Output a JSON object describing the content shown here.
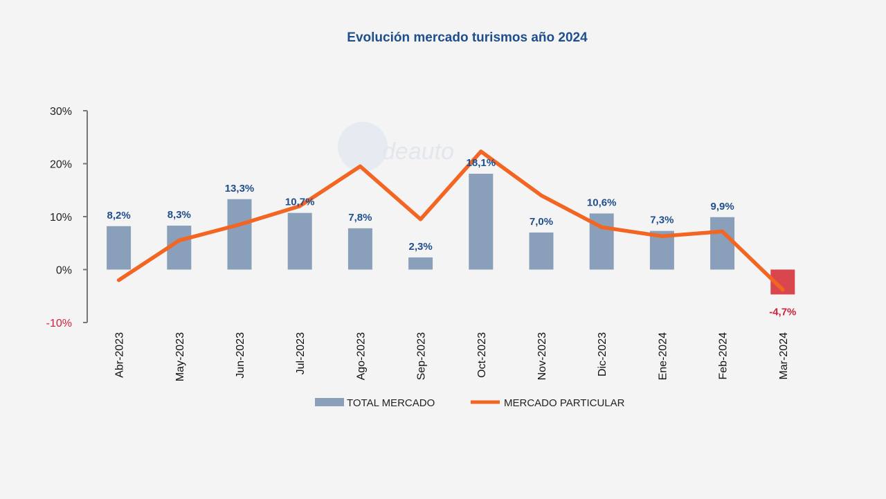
{
  "chart_data": {
    "type": "bar",
    "title": "Evolución mercado turismos año 2024",
    "categories": [
      "Abr-2023",
      "May-2023",
      "Jun-2023",
      "Jul-2023",
      "Ago-2023",
      "Sep-2023",
      "Oct-2023",
      "Nov-2023",
      "Dic-2023",
      "Ene-2024",
      "Feb-2024",
      "Mar-2024"
    ],
    "series": [
      {
        "name": "TOTAL MERCADO",
        "type": "bar",
        "values": [
          8.2,
          8.3,
          13.3,
          10.7,
          7.8,
          2.3,
          18.1,
          7.0,
          10.6,
          7.3,
          9.9,
          -4.7
        ],
        "labels": [
          "8,2%",
          "8,3%",
          "13,3%",
          "10,7%",
          "7,8%",
          "2,3%",
          "18,1%",
          "7,0%",
          "10,6%",
          "7,3%",
          "9,9%",
          "-4,7%"
        ],
        "color": "#8a9fba",
        "negative_color": "#d9464d"
      },
      {
        "name": "MERCADO PARTICULAR",
        "type": "line",
        "values": [
          -2.0,
          5.5,
          8.5,
          12.0,
          19.5,
          9.5,
          22.3,
          14.0,
          8.0,
          6.3,
          7.2,
          -3.8
        ],
        "color": "#f26522"
      }
    ],
    "yticks": [
      "30%",
      "20%",
      "10%",
      "0%",
      "-10%"
    ],
    "ytick_values": [
      30,
      20,
      10,
      0,
      -10
    ],
    "ylim": [
      -10,
      30
    ],
    "legend": "bottom",
    "grid": false
  },
  "watermark": "deauto"
}
